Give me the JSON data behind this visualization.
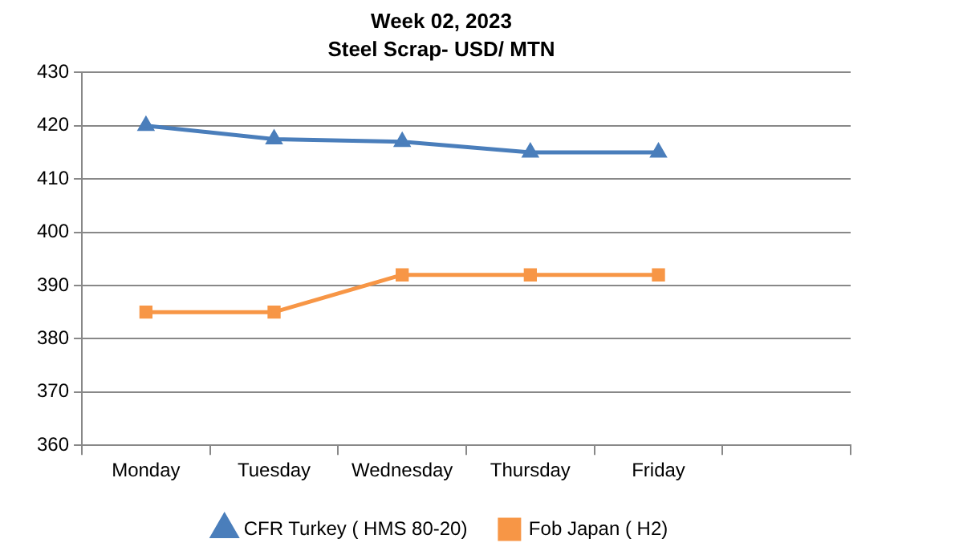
{
  "chart_data": {
    "type": "line",
    "title": "Week 02, 2023",
    "subtitle": "Steel Scrap- USD/ MTN",
    "categories": [
      "Monday",
      "Tuesday",
      "Wednesday",
      "Thursday",
      "Friday",
      null
    ],
    "series": [
      {
        "name": "CFR Turkey ( HMS 80-20)",
        "color": "#4a7ebb",
        "marker": "triangle",
        "values": [
          420,
          417.5,
          417,
          415,
          415,
          null
        ]
      },
      {
        "name": "Fob Japan ( H2)",
        "color": "#f79646",
        "marker": "square",
        "values": [
          385,
          385,
          392,
          392,
          392,
          null
        ]
      }
    ],
    "ylim": [
      360,
      430
    ],
    "yticks": [
      360,
      370,
      380,
      390,
      400,
      410,
      420,
      430
    ],
    "grid": "y",
    "legend": "bottom",
    "line_style": "solid"
  }
}
